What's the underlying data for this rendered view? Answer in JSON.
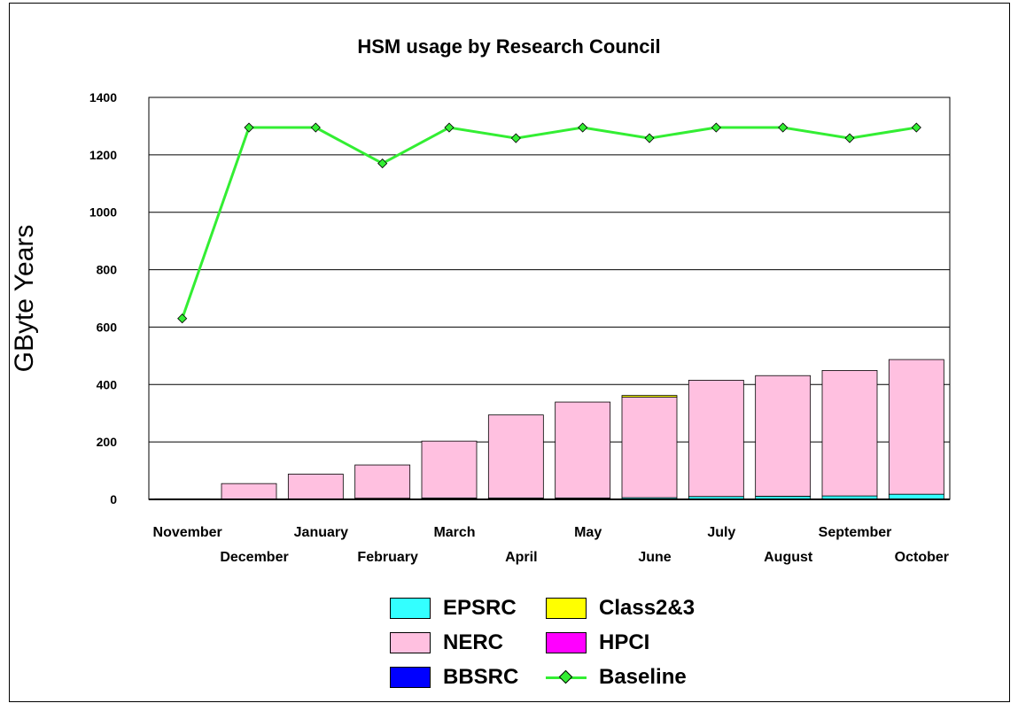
{
  "chart_data": {
    "type": "bar",
    "title": "HSM usage by Research Council",
    "ylabel": "GByte Years",
    "xlabel": "",
    "ylim": [
      0,
      1400
    ],
    "yticks": [
      0,
      200,
      400,
      600,
      800,
      1000,
      1200,
      1400
    ],
    "grid": true,
    "legend_position": "bottom",
    "stacked": true,
    "categories": [
      "November",
      "December",
      "January",
      "February",
      "March",
      "April",
      "May",
      "June",
      "July",
      "August",
      "September",
      "October"
    ],
    "series": [
      {
        "name": "EPSRC",
        "kind": "bar",
        "color": "#33ffff",
        "values": [
          0,
          1,
          2,
          4,
          5,
          5,
          5,
          6,
          10,
          11,
          12,
          18
        ]
      },
      {
        "name": "NERC",
        "kind": "bar",
        "color": "#ffc0e0",
        "values": [
          2,
          54,
          86,
          116,
          198,
          289,
          334,
          350,
          405,
          420,
          437,
          469
        ]
      },
      {
        "name": "BBSRC",
        "kind": "bar",
        "color": "#0000ff",
        "values": [
          0,
          0,
          0,
          0,
          0,
          0,
          0,
          0,
          0,
          0,
          0,
          0
        ]
      },
      {
        "name": "Class2&3",
        "kind": "bar",
        "color": "#ffff00",
        "values": [
          0,
          0,
          0,
          0,
          0,
          0,
          0,
          6,
          0,
          0,
          0,
          0
        ]
      },
      {
        "name": "HPCI",
        "kind": "bar",
        "color": "#ff00ff",
        "values": [
          0,
          0,
          0,
          0,
          0,
          0,
          0,
          0,
          0,
          0,
          0,
          0
        ]
      },
      {
        "name": "Baseline",
        "kind": "line",
        "color": "#33ee33",
        "values": [
          630,
          1295,
          1295,
          1170,
          1295,
          1258,
          1295,
          1258,
          1295,
          1295,
          1258,
          1295
        ]
      }
    ]
  },
  "legend": {
    "items": [
      {
        "name": "EPSRC",
        "type": "box",
        "color": "#33ffff"
      },
      {
        "name": "Class2&3",
        "type": "box",
        "color": "#ffff00"
      },
      {
        "name": "NERC",
        "type": "box",
        "color": "#ffc0e0"
      },
      {
        "name": "HPCI",
        "type": "box",
        "color": "#ff00ff"
      },
      {
        "name": "BBSRC",
        "type": "box",
        "color": "#0000ff"
      },
      {
        "name": "Baseline",
        "type": "line",
        "color": "#33ee33"
      }
    ]
  }
}
